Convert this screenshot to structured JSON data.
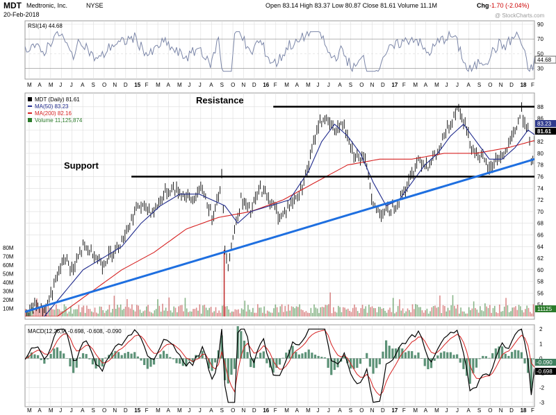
{
  "header": {
    "symbol": "MDT",
    "company": "Medtronic, Inc.",
    "exchange": "NYSE",
    "date": "20-Feb-2018",
    "ohlc_text": "Open 83.14  High 83.37  Low 80.87  Close 81.61  Volume 11.1M",
    "chg_label": "Chg",
    "chg_value": "-1.70 (-2.04%)",
    "watermark": "@ StockCharts.com"
  },
  "colors": {
    "price_up": "#000000",
    "ma50": "#1f2a8c",
    "ma200": "#d62020",
    "volume_up": "#2a7a2a",
    "volume_down": "#c03030",
    "trendline": "#1e6fe0",
    "rsi_line": "#7b86a8",
    "macd_line": "#000000",
    "signal_line": "#d62020",
    "histogram": "#3f7f5f",
    "grid": "#dcdcdc"
  },
  "x_axis": {
    "months": [
      "M",
      "A",
      "M",
      "J",
      "J",
      "A",
      "S",
      "O",
      "N",
      "D",
      "15",
      "F",
      "M",
      "A",
      "M",
      "J",
      "J",
      "A",
      "S",
      "O",
      "N",
      "D",
      "16",
      "F",
      "M",
      "A",
      "M",
      "J",
      "J",
      "A",
      "S",
      "O",
      "N",
      "D",
      "17",
      "F",
      "M",
      "A",
      "M",
      "J",
      "J",
      "A",
      "S",
      "O",
      "N",
      "D",
      "18",
      "F"
    ]
  },
  "rsi_panel": {
    "title": "RSI(14) 44.68",
    "levels": [
      "90",
      "70",
      "50",
      "30"
    ],
    "last_value": "44.68"
  },
  "price_panel": {
    "legend": [
      "MDT (Daily) 81.61",
      "MA(50) 83.23",
      "MA(200) 82.16",
      "Volume 11,125,874"
    ],
    "ticks": [
      "88",
      "86",
      "84",
      "82",
      "80",
      "78",
      "76",
      "74",
      "72",
      "70",
      "68",
      "66",
      "64",
      "62",
      "60",
      "58",
      "56",
      "54"
    ],
    "last_tags": [
      "83.23",
      "81.61"
    ],
    "volume_ticks": [
      "80M",
      "70M",
      "60M",
      "50M",
      "40M",
      "30M",
      "20M",
      "10M"
    ],
    "volume_tag": "11125",
    "annotations": {
      "resistance": "Resistance",
      "support": "Support"
    }
  },
  "macd_panel": {
    "title": "MACD(12,26,9) -0.698, -0.608, -0.090",
    "ticks": [
      "2",
      "1",
      "0",
      "-1",
      "-2",
      "-3"
    ],
    "last_tags": [
      "-0.090",
      "-0.698"
    ]
  },
  "chart_data": {
    "type": "line",
    "ylim": [
      52,
      90
    ],
    "price_series": {
      "name": "MDT (Daily)",
      "points": [
        [
          0,
          51.5
        ],
        [
          3,
          54
        ],
        [
          6,
          53
        ],
        [
          9,
          57
        ],
        [
          12,
          62
        ],
        [
          15,
          60
        ],
        [
          18,
          64
        ],
        [
          21,
          63
        ],
        [
          24,
          61
        ],
        [
          27,
          63
        ],
        [
          30,
          65
        ],
        [
          35,
          71
        ],
        [
          40,
          70
        ],
        [
          43,
          73
        ],
        [
          46,
          74
        ],
        [
          49,
          73
        ],
        [
          52,
          72
        ],
        [
          55,
          74
        ],
        [
          58,
          69
        ],
        [
          60,
          73
        ],
        [
          61,
          76
        ],
        [
          62,
          64
        ],
        [
          63,
          61
        ],
        [
          65,
          67
        ],
        [
          67,
          72
        ],
        [
          70,
          70
        ],
        [
          73,
          74
        ],
        [
          76,
          72
        ],
        [
          79,
          69
        ],
        [
          82,
          71
        ],
        [
          85,
          73
        ],
        [
          88,
          78
        ],
        [
          91,
          85
        ],
        [
          93,
          86
        ],
        [
          96,
          84
        ],
        [
          99,
          85
        ],
        [
          102,
          80
        ],
        [
          104,
          79
        ],
        [
          106,
          78
        ],
        [
          108,
          71
        ],
        [
          110,
          70
        ],
        [
          113,
          70
        ],
        [
          116,
          72
        ],
        [
          119,
          75
        ],
        [
          122,
          79
        ],
        [
          125,
          78
        ],
        [
          128,
          80
        ],
        [
          131,
          84
        ],
        [
          134,
          88
        ],
        [
          136,
          86
        ],
        [
          138,
          82
        ],
        [
          140,
          80
        ],
        [
          142,
          79
        ],
        [
          144,
          77
        ],
        [
          146,
          79
        ],
        [
          149,
          80
        ],
        [
          152,
          84
        ],
        [
          154,
          87
        ],
        [
          156,
          84
        ],
        [
          157,
          78
        ],
        [
          158,
          81.6
        ]
      ]
    },
    "ma50": {
      "name": "MA(50)",
      "last": 83.23,
      "points": [
        [
          0,
          50
        ],
        [
          6,
          52
        ],
        [
          12,
          56
        ],
        [
          18,
          60
        ],
        [
          24,
          62
        ],
        [
          30,
          64
        ],
        [
          36,
          68
        ],
        [
          42,
          71
        ],
        [
          48,
          73
        ],
        [
          54,
          73
        ],
        [
          58,
          72
        ],
        [
          62,
          71
        ],
        [
          66,
          68
        ],
        [
          70,
          70
        ],
        [
          76,
          71
        ],
        [
          82,
          72
        ],
        [
          88,
          77
        ],
        [
          92,
          82
        ],
        [
          96,
          85
        ],
        [
          100,
          83
        ],
        [
          104,
          80
        ],
        [
          108,
          75
        ],
        [
          112,
          71
        ],
        [
          116,
          72
        ],
        [
          120,
          75
        ],
        [
          124,
          78
        ],
        [
          128,
          80
        ],
        [
          132,
          83
        ],
        [
          136,
          85
        ],
        [
          140,
          82
        ],
        [
          144,
          79
        ],
        [
          148,
          79
        ],
        [
          152,
          81
        ],
        [
          156,
          84
        ],
        [
          158,
          83.2
        ]
      ]
    },
    "ma200": {
      "name": "MA(200)",
      "last": 82.16,
      "points": [
        [
          0,
          52
        ],
        [
          10,
          52
        ],
        [
          20,
          56
        ],
        [
          30,
          60
        ],
        [
          40,
          63
        ],
        [
          50,
          67
        ],
        [
          60,
          69
        ],
        [
          70,
          70
        ],
        [
          80,
          72
        ],
        [
          90,
          75
        ],
        [
          100,
          78
        ],
        [
          110,
          79
        ],
        [
          120,
          79
        ],
        [
          130,
          80
        ],
        [
          140,
          80
        ],
        [
          150,
          81
        ],
        [
          158,
          82.2
        ]
      ]
    },
    "support": {
      "y": 76,
      "x0": 33,
      "x1": 158
    },
    "resistance": {
      "y": 88,
      "x0": 77,
      "x1": 158
    },
    "trendline": {
      "x0": 0,
      "y0": 52.8,
      "x1": 158,
      "y1": 79
    },
    "volume_series": {
      "name": "Volume",
      "last": 11125874,
      "ylim_millions": [
        0,
        80
      ]
    },
    "rsi_series": {
      "name": "RSI(14)",
      "last": 44.68,
      "ylim": [
        20,
        90
      ]
    },
    "macd_series": {
      "macd": -0.698,
      "signal": -0.608,
      "histogram": -0.09,
      "ylim": [
        -3.2,
        2.2
      ]
    }
  }
}
